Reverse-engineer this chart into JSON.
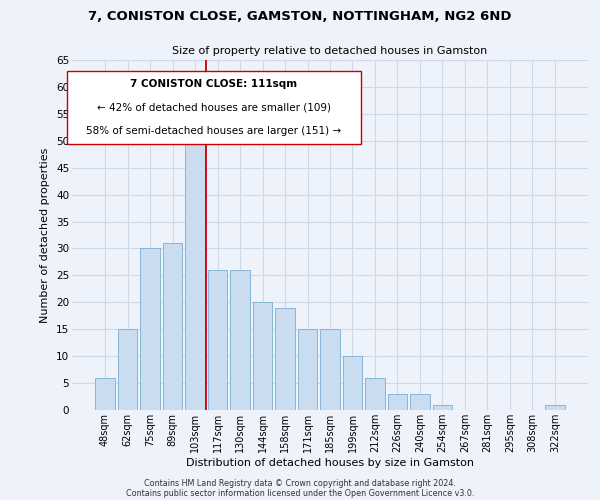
{
  "title": "7, CONISTON CLOSE, GAMSTON, NOTTINGHAM, NG2 6ND",
  "subtitle": "Size of property relative to detached houses in Gamston",
  "xlabel": "Distribution of detached houses by size in Gamston",
  "ylabel": "Number of detached properties",
  "bar_labels": [
    "48sqm",
    "62sqm",
    "75sqm",
    "89sqm",
    "103sqm",
    "117sqm",
    "130sqm",
    "144sqm",
    "158sqm",
    "171sqm",
    "185sqm",
    "199sqm",
    "212sqm",
    "226sqm",
    "240sqm",
    "254sqm",
    "267sqm",
    "281sqm",
    "295sqm",
    "308sqm",
    "322sqm"
  ],
  "bar_values": [
    6,
    15,
    30,
    31,
    51,
    26,
    26,
    20,
    19,
    15,
    15,
    10,
    6,
    3,
    3,
    1,
    0,
    0,
    0,
    0,
    1
  ],
  "bar_color": "#c9dcf0",
  "bar_edge_color": "#7bafd4",
  "vline_x": 4.5,
  "vline_color": "#cc0000",
  "annotation_title": "7 CONISTON CLOSE: 111sqm",
  "annotation_line1": "← 42% of detached houses are smaller (109)",
  "annotation_line2": "58% of semi-detached houses are larger (151) →",
  "annotation_box_color": "#ffffff",
  "annotation_box_edge": "#cc0000",
  "ylim": [
    0,
    65
  ],
  "yticks": [
    0,
    5,
    10,
    15,
    20,
    25,
    30,
    35,
    40,
    45,
    50,
    55,
    60,
    65
  ],
  "footer1": "Contains HM Land Registry data © Crown copyright and database right 2024.",
  "footer2": "Contains public sector information licensed under the Open Government Licence v3.0.",
  "bg_color": "#eef2fa",
  "grid_color": "#d0d8e8",
  "plot_bg_color": "#eef2fa"
}
